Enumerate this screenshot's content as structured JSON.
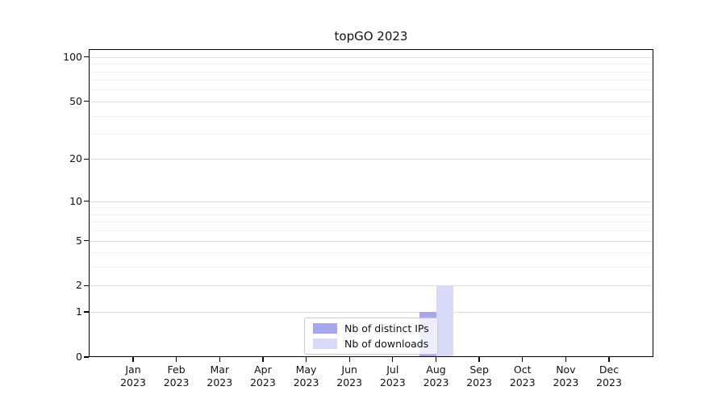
{
  "chart_data": {
    "type": "bar",
    "title": "topGO 2023",
    "x_tick_months": [
      "Jan",
      "Feb",
      "Mar",
      "Apr",
      "May",
      "Jun",
      "Jul",
      "Aug",
      "Sep",
      "Oct",
      "Nov",
      "Dec"
    ],
    "x_tick_year": "2023",
    "series": [
      {
        "name": "Nb of distinct IPs",
        "color": "#a7a7f0",
        "values": [
          0,
          0,
          0,
          0,
          0,
          0,
          0,
          1,
          0,
          0,
          0,
          0
        ]
      },
      {
        "name": "Nb of downloads",
        "color": "#d8d8f8",
        "values": [
          0,
          0,
          0,
          0,
          0,
          0,
          0,
          2,
          0,
          0,
          0,
          0
        ]
      }
    ],
    "yscale": "log1p",
    "ylim": [
      0,
      113
    ],
    "y_major_ticks": [
      0,
      1,
      2,
      5,
      10,
      20,
      50,
      100
    ],
    "y_minor_ticks": [
      3,
      4,
      6,
      7,
      8,
      9,
      30,
      40,
      60,
      70,
      80,
      90
    ],
    "grid": "on",
    "legend_position": "bottom-center"
  },
  "colors": {
    "grid_major": "#dcdcdc",
    "grid_minor": "#f0f0f0",
    "axis": "#000000",
    "legend_border": "#c9c9c9",
    "bar_distinct_ips": "#a7a7f0",
    "bar_downloads": "#d8d8f8"
  }
}
